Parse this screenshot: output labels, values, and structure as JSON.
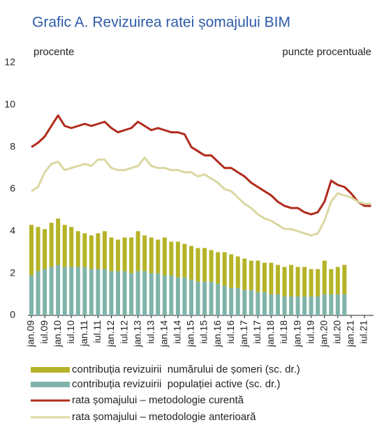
{
  "chart_data": {
    "type": "combo",
    "title": "Grafic A. Revizuirea ratei șomajului BIM",
    "y_label": "procente",
    "y2_label": "puncte procentuale",
    "categories": [
      "jan.09",
      null,
      "iul.09",
      null,
      "jan.10",
      null,
      "iul.10",
      null,
      "jan.11",
      null,
      "iul.11",
      null,
      "jan.12",
      null,
      "iul.12",
      null,
      "jan.13",
      null,
      "iul.13",
      null,
      "jan.14",
      null,
      "iul.14",
      null,
      "jan.15",
      null,
      "iul.15",
      null,
      "jan.16",
      null,
      "iul.16",
      null,
      "jan.17",
      null,
      "iul.17",
      null,
      "jan.18",
      null,
      "iul.18",
      null,
      "jan.19",
      null,
      "iul.19",
      null,
      "jan.20",
      null,
      "iul.20",
      null,
      "jan.21",
      null,
      "iul.21",
      null
    ],
    "ylim": [
      0,
      12
    ],
    "yticks": [
      0,
      2,
      4,
      6,
      8,
      10,
      12
    ],
    "series": [
      {
        "name": "contribuția revizuirii  numărului de șomeri (sc. dr.)",
        "type": "bar",
        "stack": 1,
        "color": "#b5b327",
        "values": [
          2.4,
          2.1,
          1.9,
          2.1,
          2.2,
          2.0,
          1.9,
          1.7,
          1.6,
          1.6,
          1.7,
          1.8,
          1.6,
          1.5,
          1.6,
          1.7,
          1.9,
          1.7,
          1.7,
          1.6,
          1.8,
          1.6,
          1.7,
          1.6,
          1.6,
          1.6,
          1.6,
          1.5,
          1.5,
          1.6,
          1.6,
          1.5,
          1.5,
          1.4,
          1.5,
          1.4,
          1.5,
          1.4,
          1.4,
          1.5,
          1.4,
          1.4,
          1.3,
          1.3,
          1.6,
          1.2,
          1.3,
          1.4,
          null,
          null,
          null,
          null
        ]
      },
      {
        "name": "contribuția revizuirii  populației active (sc. dr.)",
        "type": "bar",
        "stack": 0,
        "color": "#7fb3a9",
        "values": [
          1.9,
          2.1,
          2.2,
          2.3,
          2.4,
          2.3,
          2.3,
          2.3,
          2.3,
          2.2,
          2.2,
          2.2,
          2.1,
          2.1,
          2.1,
          2.0,
          2.1,
          2.1,
          2.0,
          2.0,
          1.9,
          1.9,
          1.8,
          1.8,
          1.7,
          1.6,
          1.6,
          1.6,
          1.5,
          1.4,
          1.3,
          1.3,
          1.2,
          1.2,
          1.1,
          1.1,
          1.0,
          1.0,
          0.9,
          0.9,
          0.9,
          0.9,
          0.9,
          0.9,
          1.0,
          1.0,
          1.0,
          1.0,
          null,
          null,
          null,
          null
        ]
      },
      {
        "name": "rata șomajului – metodologie curentă",
        "type": "line",
        "color": "#b02a1c",
        "values": [
          8.0,
          8.2,
          8.5,
          9.0,
          9.5,
          9.0,
          8.9,
          9.0,
          9.1,
          9.0,
          9.1,
          9.2,
          8.9,
          8.7,
          8.8,
          8.9,
          9.2,
          9.0,
          8.8,
          8.9,
          8.8,
          8.7,
          8.7,
          8.6,
          8.0,
          7.8,
          7.6,
          7.6,
          7.3,
          7.0,
          7.0,
          6.8,
          6.6,
          6.3,
          6.1,
          5.9,
          5.7,
          5.4,
          5.2,
          5.1,
          5.1,
          4.9,
          4.8,
          4.9,
          5.4,
          6.4,
          6.2,
          6.1,
          5.8,
          5.4,
          5.2,
          5.2
        ]
      },
      {
        "name": "rata șomajului – metodologie anterioară",
        "type": "line",
        "color": "#dad7a2",
        "values": [
          5.9,
          6.1,
          6.8,
          7.2,
          7.3,
          6.9,
          7.0,
          7.1,
          7.2,
          7.1,
          7.4,
          7.4,
          7.0,
          6.9,
          6.9,
          7.0,
          7.1,
          7.5,
          7.1,
          7.0,
          7.0,
          6.9,
          6.9,
          6.8,
          6.8,
          6.6,
          6.7,
          6.5,
          6.3,
          6.0,
          5.9,
          5.6,
          5.3,
          5.1,
          4.8,
          4.6,
          4.5,
          4.3,
          4.1,
          4.1,
          4.0,
          3.9,
          3.8,
          3.9,
          4.5,
          5.4,
          5.8,
          5.7,
          5.6,
          5.4,
          5.3,
          5.3
        ]
      }
    ]
  }
}
